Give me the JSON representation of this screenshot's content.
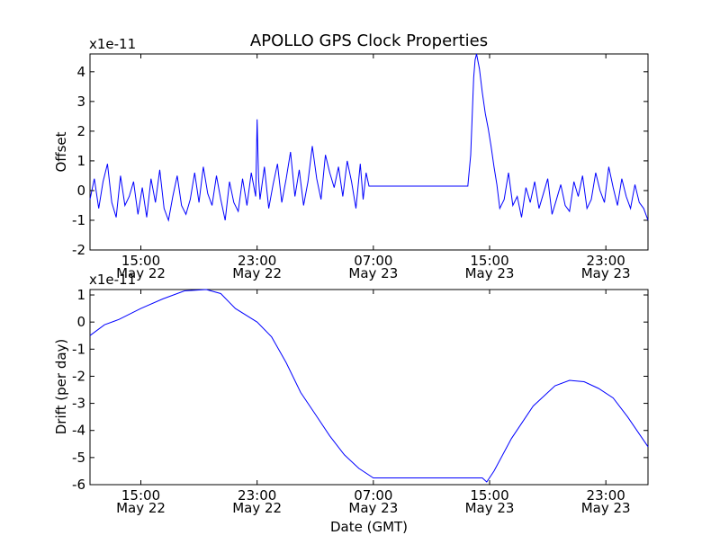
{
  "figure": {
    "title": "APOLLO GPS Clock Properties",
    "xlabel": "Date (GMT)"
  },
  "chart_data": [
    {
      "type": "line",
      "title": "APOLLO GPS Clock Properties",
      "ylabel": "Offset",
      "xlabel": "",
      "scale_label": "x1e-11",
      "x_unit": "hours since May 22 15:00 GMT",
      "xlim": [
        -3.5,
        34.9
      ],
      "ylim": [
        -2.0,
        4.6
      ],
      "yticks": [
        -2,
        -1,
        0,
        1,
        2,
        3,
        4
      ],
      "ytick_labels": [
        "-2",
        "-1",
        "0",
        "1",
        "2",
        "3",
        "4"
      ],
      "xticks": [
        {
          "x": 0,
          "time": "15:00",
          "date": "May 22"
        },
        {
          "x": 8,
          "time": "23:00",
          "date": "May 22"
        },
        {
          "x": 16,
          "time": "07:00",
          "date": "May 23"
        },
        {
          "x": 24,
          "time": "15:00",
          "date": "May 23"
        },
        {
          "x": 32,
          "time": "23:00",
          "date": "May 23"
        }
      ],
      "grid": false,
      "color": "#0000ff",
      "series": [
        {
          "name": "Offset",
          "x": [
            -3.5,
            -3.2,
            -2.9,
            -2.6,
            -2.3,
            -2.0,
            -1.7,
            -1.4,
            -1.1,
            -0.8,
            -0.5,
            -0.2,
            0.1,
            0.4,
            0.7,
            1.0,
            1.3,
            1.6,
            1.9,
            2.2,
            2.5,
            2.8,
            3.1,
            3.4,
            3.7,
            4.0,
            4.3,
            4.6,
            4.9,
            5.2,
            5.5,
            5.8,
            6.1,
            6.4,
            6.7,
            7.0,
            7.3,
            7.6,
            7.9,
            8.0,
            8.1,
            8.2,
            8.5,
            8.8,
            9.1,
            9.4,
            9.7,
            10.0,
            10.3,
            10.6,
            10.9,
            11.2,
            11.5,
            11.8,
            12.1,
            12.4,
            12.7,
            13.0,
            13.3,
            13.6,
            13.9,
            14.2,
            14.5,
            14.8,
            15.1,
            15.3,
            15.5,
            15.7,
            17.0,
            19.0,
            21.0,
            22.0,
            22.5,
            22.7,
            22.9,
            23.0,
            23.1,
            23.3,
            23.5,
            23.7,
            23.9,
            24.1,
            24.3,
            24.5,
            24.7,
            25.0,
            25.3,
            25.6,
            25.9,
            26.2,
            26.5,
            26.8,
            27.1,
            27.4,
            27.7,
            28.0,
            28.3,
            28.6,
            28.9,
            29.2,
            29.5,
            29.8,
            30.1,
            30.4,
            30.7,
            31.0,
            31.3,
            31.6,
            31.9,
            32.2,
            32.5,
            32.8,
            33.1,
            33.4,
            33.7,
            34.0,
            34.3,
            34.6,
            34.9
          ],
          "y": [
            -0.3,
            0.4,
            -0.6,
            0.3,
            0.9,
            -0.4,
            -0.9,
            0.5,
            -0.5,
            -0.2,
            0.3,
            -0.8,
            0.1,
            -0.9,
            0.4,
            -0.4,
            0.7,
            -0.6,
            -1.0,
            -0.2,
            0.5,
            -0.5,
            -0.8,
            -0.3,
            0.6,
            -0.4,
            0.8,
            -0.1,
            -0.5,
            0.5,
            -0.3,
            -1.0,
            0.3,
            -0.4,
            -0.7,
            0.4,
            -0.5,
            0.6,
            -0.2,
            2.4,
            0.4,
            -0.3,
            0.8,
            -0.6,
            0.2,
            0.9,
            -0.4,
            0.4,
            1.3,
            -0.2,
            0.7,
            -0.5,
            0.3,
            1.5,
            0.4,
            -0.3,
            1.2,
            0.6,
            0.1,
            0.8,
            -0.2,
            1.0,
            0.3,
            -0.6,
            0.9,
            -0.3,
            0.6,
            0.15,
            0.15,
            0.15,
            0.15,
            0.15,
            0.15,
            1.2,
            3.8,
            4.4,
            4.6,
            4.1,
            3.3,
            2.6,
            2.1,
            1.5,
            0.8,
            0.2,
            -0.6,
            -0.3,
            0.6,
            -0.5,
            -0.2,
            -0.9,
            0.1,
            -0.4,
            0.3,
            -0.6,
            -0.1,
            0.4,
            -0.8,
            -0.3,
            0.2,
            -0.5,
            -0.7,
            0.3,
            -0.2,
            0.5,
            -0.6,
            -0.3,
            0.6,
            0.0,
            -0.4,
            0.8,
            0.1,
            -0.5,
            0.4,
            -0.2,
            -0.6,
            0.2,
            -0.4,
            -0.6,
            -1.0
          ]
        }
      ]
    },
    {
      "type": "line",
      "title": "",
      "ylabel": "Drift (per day)",
      "xlabel": "Date (GMT)",
      "scale_label": "x1e-11",
      "x_unit": "hours since May 22 15:00 GMT",
      "xlim": [
        -3.5,
        34.9
      ],
      "ylim": [
        -6.0,
        1.2
      ],
      "yticks": [
        -6,
        -5,
        -4,
        -3,
        -2,
        -1,
        0,
        1
      ],
      "ytick_labels": [
        "-6",
        "-5",
        "-4",
        "-3",
        "-2",
        "-1",
        "0",
        "1"
      ],
      "xticks": [
        {
          "x": 0,
          "time": "15:00",
          "date": "May 22"
        },
        {
          "x": 8,
          "time": "23:00",
          "date": "May 22"
        },
        {
          "x": 16,
          "time": "07:00",
          "date": "May 23"
        },
        {
          "x": 24,
          "time": "15:00",
          "date": "May 23"
        },
        {
          "x": 32,
          "time": "23:00",
          "date": "May 23"
        }
      ],
      "grid": false,
      "color": "#0000ff",
      "series": [
        {
          "name": "Drift",
          "x": [
            -3.5,
            -2.5,
            -1.5,
            0.0,
            1.5,
            3.0,
            4.5,
            5.5,
            6.5,
            8.0,
            9.0,
            10.0,
            11.0,
            12.0,
            13.0,
            14.0,
            15.0,
            16.0,
            17.0,
            19.0,
            21.0,
            23.0,
            23.5,
            23.8,
            24.3,
            25.5,
            27.0,
            28.5,
            29.5,
            30.5,
            31.5,
            32.5,
            33.5,
            34.9
          ],
          "y": [
            -0.5,
            -0.1,
            0.1,
            0.5,
            0.85,
            1.15,
            1.2,
            1.05,
            0.5,
            0.0,
            -0.55,
            -1.5,
            -2.6,
            -3.4,
            -4.2,
            -4.9,
            -5.4,
            -5.75,
            -5.75,
            -5.75,
            -5.75,
            -5.75,
            -5.75,
            -5.9,
            -5.5,
            -4.3,
            -3.1,
            -2.35,
            -2.15,
            -2.2,
            -2.45,
            -2.8,
            -3.5,
            -4.6
          ]
        }
      ]
    }
  ]
}
